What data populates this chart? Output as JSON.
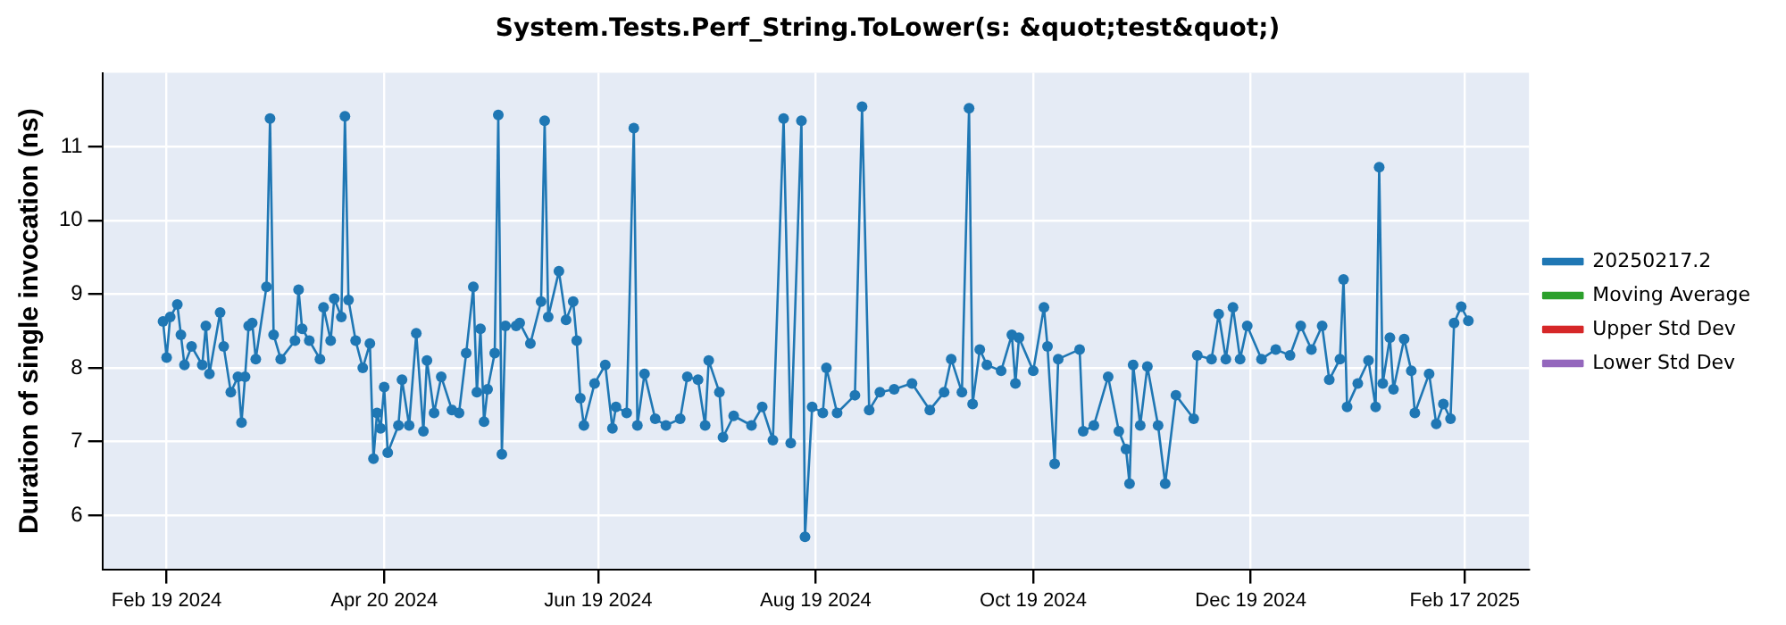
{
  "chart_data": {
    "type": "line",
    "title": "System.Tests.Perf_String.ToLower(s: &quot;test&quot;)",
    "ylabel": "Duration of single invocation (ns)",
    "x": [
      "2024-02-18",
      "2024-02-19",
      "2024-02-20",
      "2024-02-22",
      "2024-02-23",
      "2024-02-24",
      "2024-02-26",
      "2024-02-29",
      "2024-03-01",
      "2024-03-02",
      "2024-03-05",
      "2024-03-06",
      "2024-03-08",
      "2024-03-10",
      "2024-03-11",
      "2024-03-12",
      "2024-03-13",
      "2024-03-14",
      "2024-03-15",
      "2024-03-18",
      "2024-03-19",
      "2024-03-20",
      "2024-03-22",
      "2024-03-26",
      "2024-03-27",
      "2024-03-28",
      "2024-03-30",
      "2024-04-02",
      "2024-04-03",
      "2024-04-05",
      "2024-04-06",
      "2024-04-08",
      "2024-04-09",
      "2024-04-10",
      "2024-04-12",
      "2024-04-14",
      "2024-04-16",
      "2024-04-17",
      "2024-04-18",
      "2024-04-19",
      "2024-04-20",
      "2024-04-21",
      "2024-04-24",
      "2024-04-25",
      "2024-04-27",
      "2024-04-29",
      "2024-05-01",
      "2024-05-02",
      "2024-05-04",
      "2024-05-06",
      "2024-05-09",
      "2024-05-11",
      "2024-05-13",
      "2024-05-15",
      "2024-05-16",
      "2024-05-17",
      "2024-05-18",
      "2024-05-19",
      "2024-05-21",
      "2024-05-22",
      "2024-05-23",
      "2024-05-24",
      "2024-05-27",
      "2024-05-28",
      "2024-05-31",
      "2024-06-03",
      "2024-06-04",
      "2024-06-05",
      "2024-06-08",
      "2024-06-10",
      "2024-06-12",
      "2024-06-13",
      "2024-06-14",
      "2024-06-15",
      "2024-06-18",
      "2024-06-21",
      "2024-06-23",
      "2024-06-24",
      "2024-06-27",
      "2024-06-29",
      "2024-06-30",
      "2024-07-02",
      "2024-07-05",
      "2024-07-08",
      "2024-07-12",
      "2024-07-14",
      "2024-07-17",
      "2024-07-19",
      "2024-07-20",
      "2024-07-23",
      "2024-07-24",
      "2024-07-27",
      "2024-08-01",
      "2024-08-04",
      "2024-08-07",
      "2024-08-10",
      "2024-08-12",
      "2024-08-15",
      "2024-08-16",
      "2024-08-18",
      "2024-08-21",
      "2024-08-22",
      "2024-08-25",
      "2024-08-30",
      "2024-09-01",
      "2024-09-03",
      "2024-09-06",
      "2024-09-10",
      "2024-09-15",
      "2024-09-20",
      "2024-09-24",
      "2024-09-26",
      "2024-09-29",
      "2024-10-01",
      "2024-10-02",
      "2024-10-04",
      "2024-10-06",
      "2024-10-10",
      "2024-10-13",
      "2024-10-14",
      "2024-10-15",
      "2024-10-19",
      "2024-10-22",
      "2024-10-23",
      "2024-10-25",
      "2024-10-26",
      "2024-11-01",
      "2024-11-02",
      "2024-11-05",
      "2024-11-09",
      "2024-11-12",
      "2024-11-14",
      "2024-11-15",
      "2024-11-16",
      "2024-11-18",
      "2024-11-20",
      "2024-11-23",
      "2024-11-25",
      "2024-11-28",
      "2024-12-03",
      "2024-12-04",
      "2024-12-08",
      "2024-12-10",
      "2024-12-12",
      "2024-12-14",
      "2024-12-16",
      "2024-12-18",
      "2024-12-22",
      "2024-12-26",
      "2024-12-30",
      "2025-01-02",
      "2025-01-05",
      "2025-01-08",
      "2025-01-10",
      "2025-01-13",
      "2025-01-14",
      "2025-01-15",
      "2025-01-18",
      "2025-01-21",
      "2025-01-23",
      "2025-01-24",
      "2025-01-25",
      "2025-01-27",
      "2025-01-28",
      "2025-01-31",
      "2025-02-02",
      "2025-02-03",
      "2025-02-07",
      "2025-02-09",
      "2025-02-11",
      "2025-02-13",
      "2025-02-14",
      "2025-02-16",
      "2025-02-18"
    ],
    "series": [
      {
        "name": "20250217.2",
        "color": "#1f77b4",
        "values": [
          8.63,
          8.14,
          8.69,
          8.86,
          8.45,
          8.04,
          8.29,
          8.04,
          8.57,
          7.92,
          8.75,
          8.29,
          7.67,
          7.88,
          7.26,
          7.88,
          8.57,
          8.61,
          8.12,
          9.1,
          11.38,
          8.45,
          8.12,
          8.37,
          9.06,
          8.53,
          8.37,
          8.12,
          8.82,
          8.37,
          8.94,
          8.69,
          11.41,
          8.92,
          8.37,
          8.0,
          8.33,
          6.77,
          7.39,
          7.18,
          7.74,
          6.85,
          7.22,
          7.84,
          7.22,
          8.47,
          7.14,
          8.1,
          7.39,
          7.88,
          7.43,
          7.39,
          8.2,
          9.1,
          7.67,
          8.53,
          7.27,
          7.71,
          8.2,
          11.43,
          6.83,
          8.57,
          8.57,
          8.61,
          8.33,
          8.9,
          11.35,
          8.69,
          9.31,
          8.65,
          8.9,
          8.37,
          7.59,
          7.22,
          7.79,
          8.04,
          7.18,
          7.47,
          7.39,
          11.25,
          7.22,
          7.92,
          7.31,
          7.22,
          7.31,
          7.88,
          7.84,
          7.22,
          8.1,
          7.67,
          7.06,
          7.35,
          7.22,
          7.47,
          7.02,
          11.38,
          6.98,
          11.35,
          5.71,
          7.47,
          7.39,
          8.0,
          7.39,
          7.63,
          11.54,
          7.43,
          7.67,
          7.71,
          7.79,
          7.43,
          7.67,
          8.12,
          7.67,
          11.52,
          7.51,
          8.25,
          8.04,
          7.96,
          8.45,
          7.79,
          8.41,
          7.96,
          8.82,
          8.29,
          6.7,
          8.12,
          8.25,
          7.14,
          7.22,
          7.88,
          7.14,
          6.9,
          6.43,
          8.04,
          7.22,
          8.02,
          7.22,
          6.43,
          7.63,
          7.31,
          8.17,
          8.12,
          8.73,
          8.12,
          8.82,
          8.12,
          8.57,
          8.12,
          8.25,
          8.17,
          8.57,
          8.25,
          8.57,
          7.84,
          8.12,
          9.2,
          7.47,
          7.79,
          8.1,
          7.47,
          10.72,
          7.79,
          8.41,
          7.71,
          8.39,
          7.96,
          7.39,
          7.92,
          7.24,
          7.51,
          7.31,
          8.61,
          8.83,
          8.64
        ]
      },
      {
        "name": "Moving Average",
        "color": "#2ca02c",
        "values": [
          null,
          null,
          null,
          null,
          null,
          null,
          null,
          null,
          null,
          null,
          null,
          null,
          null,
          null,
          null,
          null,
          null,
          null,
          null,
          null,
          null,
          null,
          null,
          null,
          null,
          null,
          null,
          null,
          null,
          null,
          null,
          null,
          null,
          null,
          null,
          null,
          null,
          null,
          null,
          null,
          null,
          null,
          null,
          null,
          null,
          null,
          null,
          null,
          null,
          null,
          null,
          null,
          null,
          null,
          null,
          null,
          null,
          null,
          null,
          null,
          null,
          null,
          null,
          null,
          null,
          null,
          null,
          null,
          null,
          null,
          null,
          null,
          null,
          null,
          null,
          null,
          null,
          null,
          null,
          null,
          null,
          null,
          null,
          null,
          null,
          null,
          null,
          null,
          null,
          null,
          null,
          null,
          null,
          null,
          null,
          null,
          null,
          null,
          null,
          null,
          null,
          null,
          null,
          null,
          null,
          null,
          null,
          null,
          null,
          null,
          null,
          null,
          null,
          null,
          null,
          null,
          null,
          null,
          null,
          null,
          null,
          null,
          null,
          null,
          null,
          null,
          null,
          null,
          null,
          null,
          null,
          null,
          null,
          null,
          null,
          null,
          null,
          null,
          null,
          null,
          null,
          null,
          null,
          null,
          null,
          null,
          null,
          null,
          null,
          null,
          null,
          null,
          null,
          null,
          null,
          null,
          null,
          null,
          null,
          null,
          null,
          null,
          null,
          null,
          null,
          null,
          null,
          null,
          null,
          null,
          null,
          null,
          null,
          null
        ]
      },
      {
        "name": "Upper Std Dev",
        "color": "#d62728",
        "values": [
          null,
          null,
          null,
          null,
          null,
          null,
          null,
          null,
          null,
          null,
          null,
          null,
          null,
          null,
          null,
          null,
          null,
          null,
          null,
          null,
          null,
          null,
          null,
          null,
          null,
          null,
          null,
          null,
          null,
          null,
          null,
          null,
          null,
          null,
          null,
          null,
          null,
          null,
          null,
          null,
          null,
          null,
          null,
          null,
          null,
          null,
          null,
          null,
          null,
          null,
          null,
          null,
          null,
          null,
          null,
          null,
          null,
          null,
          null,
          null,
          null,
          null,
          null,
          null,
          null,
          null,
          null,
          null,
          null,
          null,
          null,
          null,
          null,
          null,
          null,
          null,
          null,
          null,
          null,
          null,
          null,
          null,
          null,
          null,
          null,
          null,
          null,
          null,
          null,
          null,
          null,
          null,
          null,
          null,
          null,
          null,
          null,
          null,
          null,
          null,
          null,
          null,
          null,
          null,
          null,
          null,
          null,
          null,
          null,
          null,
          null,
          null,
          null,
          null,
          null,
          null,
          null,
          null,
          null,
          null,
          null,
          null,
          null,
          null,
          null,
          null,
          null,
          null,
          null,
          null,
          null,
          null,
          null,
          null,
          null,
          null,
          null,
          null,
          null,
          null,
          null,
          null,
          null,
          null,
          null,
          null,
          null,
          null,
          null,
          null,
          null,
          null,
          null,
          null,
          null,
          null,
          null,
          null,
          null,
          null,
          null,
          null,
          null,
          null,
          null,
          null,
          null,
          null,
          null,
          null,
          null,
          null,
          null,
          null
        ]
      },
      {
        "name": "Lower Std Dev",
        "color": "#9467bd",
        "values": [
          null,
          null,
          null,
          null,
          null,
          null,
          null,
          null,
          null,
          null,
          null,
          null,
          null,
          null,
          null,
          null,
          null,
          null,
          null,
          null,
          null,
          null,
          null,
          null,
          null,
          null,
          null,
          null,
          null,
          null,
          null,
          null,
          null,
          null,
          null,
          null,
          null,
          null,
          null,
          null,
          null,
          null,
          null,
          null,
          null,
          null,
          null,
          null,
          null,
          null,
          null,
          null,
          null,
          null,
          null,
          null,
          null,
          null,
          null,
          null,
          null,
          null,
          null,
          null,
          null,
          null,
          null,
          null,
          null,
          null,
          null,
          null,
          null,
          null,
          null,
          null,
          null,
          null,
          null,
          null,
          null,
          null,
          null,
          null,
          null,
          null,
          null,
          null,
          null,
          null,
          null,
          null,
          null,
          null,
          null,
          null,
          null,
          null,
          null,
          null,
          null,
          null,
          null,
          null,
          null,
          null,
          null,
          null,
          null,
          null,
          null,
          null,
          null,
          null,
          null,
          null,
          null,
          null,
          null,
          null,
          null,
          null,
          null,
          null,
          null,
          null,
          null,
          null,
          null,
          null,
          null,
          null,
          null,
          null,
          null,
          null,
          null,
          null,
          null,
          null,
          null,
          null,
          null,
          null,
          null,
          null,
          null,
          null,
          null,
          null,
          null,
          null,
          null,
          null,
          null,
          null,
          null,
          null,
          null,
          null,
          null,
          null,
          null,
          null,
          null,
          null,
          null,
          null,
          null,
          null,
          null,
          null,
          null,
          null
        ]
      }
    ],
    "xlim": [
      "2024-02-01",
      "2025-03-07"
    ],
    "xticks": [
      {
        "value": "2024-02-19",
        "label": "Feb 19 2024"
      },
      {
        "value": "2024-04-20",
        "label": "Apr 20 2024"
      },
      {
        "value": "2024-06-19",
        "label": "Jun 19 2024"
      },
      {
        "value": "2024-08-19",
        "label": "Aug 19 2024"
      },
      {
        "value": "2024-10-19",
        "label": "Oct 19 2024"
      },
      {
        "value": "2024-12-19",
        "label": "Dec 19 2024"
      },
      {
        "value": "2025-02-17",
        "label": "Feb 17 2025"
      }
    ],
    "ylim": [
      5.27,
      12
    ],
    "yticks": [
      6,
      7,
      8,
      9,
      10,
      11
    ],
    "grid": true,
    "legend": "right",
    "marker": "circle",
    "line_style": "solid"
  }
}
